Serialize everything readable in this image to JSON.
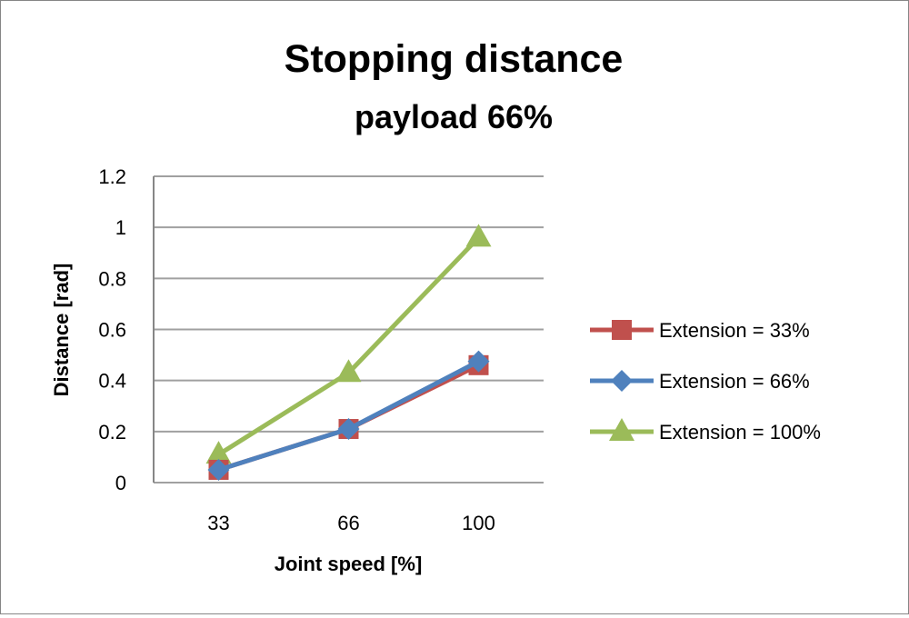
{
  "chart_data": {
    "type": "line",
    "title": "Stopping distance",
    "subtitle": "payload 66%",
    "xlabel": "Joint speed [%]",
    "ylabel": "Distance [rad]",
    "categories": [
      "33",
      "66",
      "100"
    ],
    "ylim": [
      0,
      1.2
    ],
    "yticks": [
      "0",
      "0.2",
      "0.4",
      "0.6",
      "0.8",
      "1",
      "1.2"
    ],
    "grid": true,
    "legend_position": "right",
    "series": [
      {
        "name": "Extension = 33%",
        "values": [
          0.05,
          0.21,
          0.46
        ],
        "color": "#c0504d",
        "marker": "square"
      },
      {
        "name": "Extension = 66%",
        "values": [
          0.05,
          0.21,
          0.475
        ],
        "color": "#4f81bd",
        "marker": "diamond"
      },
      {
        "name": "Extension = 100%",
        "values": [
          0.11,
          0.43,
          0.96
        ],
        "color": "#9bbb59",
        "marker": "triangle"
      }
    ]
  }
}
